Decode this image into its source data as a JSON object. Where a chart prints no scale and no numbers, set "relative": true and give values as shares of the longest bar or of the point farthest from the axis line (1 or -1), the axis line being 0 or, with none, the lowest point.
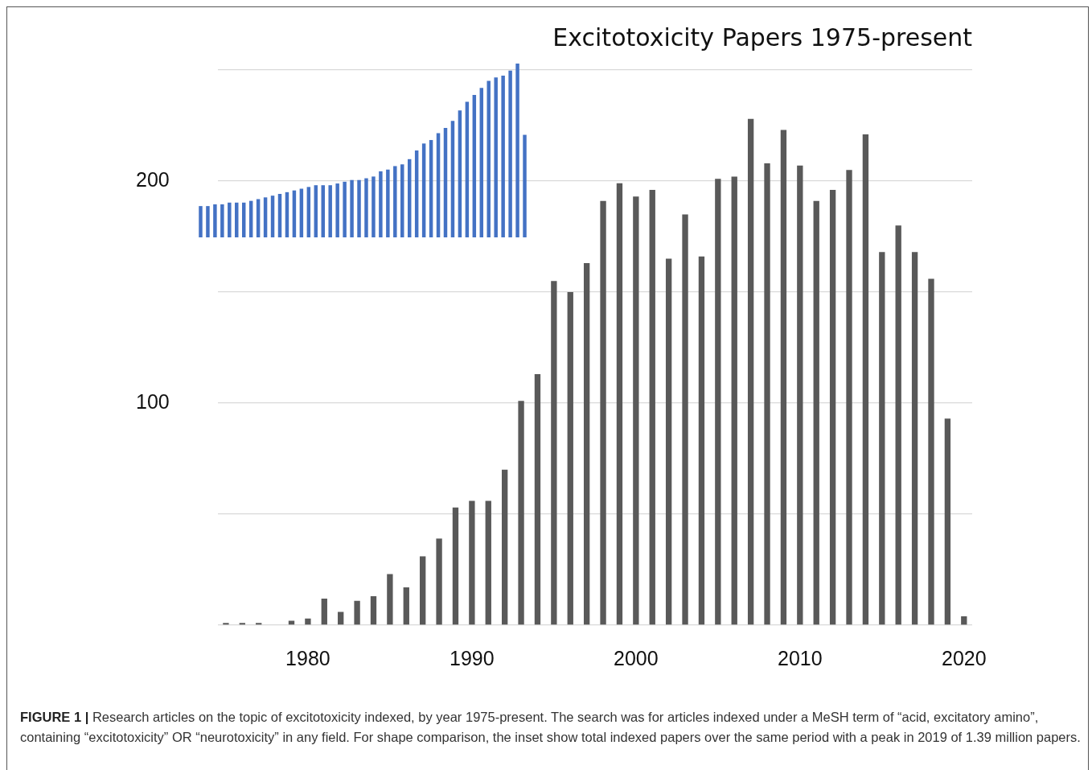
{
  "chart_data": [
    {
      "type": "bar",
      "title": "Excitotoxicity Papers 1975-present",
      "categories": [
        null,
        null,
        null,
        null,
        null,
        "1980",
        null,
        null,
        null,
        null,
        null,
        null,
        null,
        null,
        null,
        "1990",
        null,
        null,
        null,
        null,
        null,
        null,
        null,
        null,
        null,
        "2000",
        null,
        null,
        null,
        null,
        null,
        null,
        null,
        null,
        null,
        "2010",
        null,
        null,
        null,
        null,
        null,
        null,
        null,
        null,
        null,
        "2020"
      ],
      "values": [
        1,
        1,
        1,
        0,
        2,
        3,
        12,
        6,
        11,
        13,
        23,
        17,
        31,
        39,
        53,
        56,
        56,
        70,
        101,
        113,
        155,
        150,
        163,
        191,
        199,
        193,
        196,
        165,
        185,
        166,
        201,
        202,
        228,
        208,
        223,
        207,
        191,
        196,
        205,
        221,
        168,
        180,
        168,
        156,
        93,
        4
      ],
      "color": "#595959",
      "ylim": [
        0,
        250
      ],
      "yticks": [
        {
          "value": 0,
          "label": null
        },
        {
          "value": 50,
          "label": null
        },
        100,
        {
          "value": 150,
          "label": null
        },
        200,
        {
          "value": 250,
          "label": null
        }
      ],
      "grid": "y",
      "annotations": [
        "FIGURE 1 |",
        "Research articles on the topic of excitotoxicity indexed, by year 1975-present. The search was for articles indexed under a MeSH term of “acid, excitatory amino”, containing “excitotoxicity” OR “neurotoxicity” in any field. For shape comparison, the inset show total indexed papers over the same period with a peak in 2019 of 1.39 million papers."
      ]
    },
    {
      "type": "bar",
      "relative": true,
      "categories": [
        null,
        null,
        null,
        null,
        null,
        null,
        null,
        null,
        null,
        null,
        null,
        null,
        null,
        null,
        null,
        null,
        null,
        null,
        null,
        null,
        null,
        null,
        null,
        null,
        null,
        null,
        null,
        null,
        null,
        null,
        null,
        null,
        null,
        null,
        null,
        null,
        null,
        null,
        null,
        null,
        null,
        null,
        null,
        null,
        null,
        null
      ],
      "values": [
        0.18,
        0.18,
        0.19,
        0.19,
        0.2,
        0.2,
        0.2,
        0.21,
        0.22,
        0.23,
        0.24,
        0.25,
        0.26,
        0.27,
        0.28,
        0.29,
        0.3,
        0.3,
        0.3,
        0.31,
        0.32,
        0.33,
        0.33,
        0.34,
        0.35,
        0.38,
        0.39,
        0.41,
        0.42,
        0.45,
        0.5,
        0.54,
        0.56,
        0.6,
        0.63,
        0.67,
        0.73,
        0.78,
        0.82,
        0.86,
        0.9,
        0.92,
        0.93,
        0.96,
        1,
        0.59
      ],
      "color": "#4472c4"
    }
  ]
}
